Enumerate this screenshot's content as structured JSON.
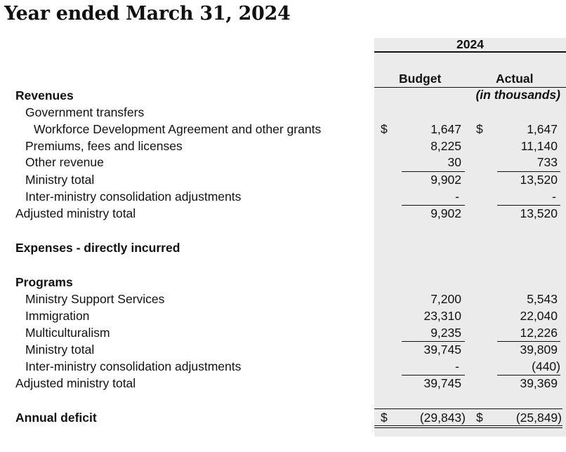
{
  "title": "Year ended March 31, 2024",
  "columns": {
    "year": "2024",
    "budget": "Budget",
    "actual": "Actual",
    "units": "(in thousands)"
  },
  "currency_symbol": "$",
  "revenues": {
    "heading": "Revenues",
    "government_transfers": "Government transfers",
    "rows": [
      {
        "label": "Workforce Development Agreement and other grants",
        "budget": "1,647",
        "actual": "1,647"
      },
      {
        "label": "Premiums, fees and licenses",
        "budget": "8,225",
        "actual": "11,140"
      },
      {
        "label": "Other revenue",
        "budget": "30",
        "actual": "733"
      },
      {
        "label": "Ministry total",
        "budget": "9,902",
        "actual": "13,520"
      },
      {
        "label": "Inter-ministry consolidation adjustments",
        "budget": "-",
        "actual": "-"
      },
      {
        "label": "Adjusted ministry total",
        "budget": "9,902",
        "actual": "13,520"
      }
    ]
  },
  "expenses": {
    "heading": "Expenses - directly incurred",
    "programs_heading": "Programs",
    "rows": [
      {
        "label": "Ministry Support Services",
        "budget": "7,200",
        "actual": "5,543"
      },
      {
        "label": "Immigration",
        "budget": "23,310",
        "actual": "22,040"
      },
      {
        "label": "Multiculturalism",
        "budget": "9,235",
        "actual": "12,226"
      },
      {
        "label": "Ministry total",
        "budget": "39,745",
        "actual": "39,809"
      },
      {
        "label": "Inter-ministry consolidation adjustments",
        "budget": "-",
        "actual": "(440)"
      },
      {
        "label": "Adjusted ministry total",
        "budget": "39,745",
        "actual": "39,369"
      }
    ]
  },
  "deficit": {
    "label": "Annual deficit",
    "budget": "(29,843)",
    "actual": "(25,849)"
  }
}
